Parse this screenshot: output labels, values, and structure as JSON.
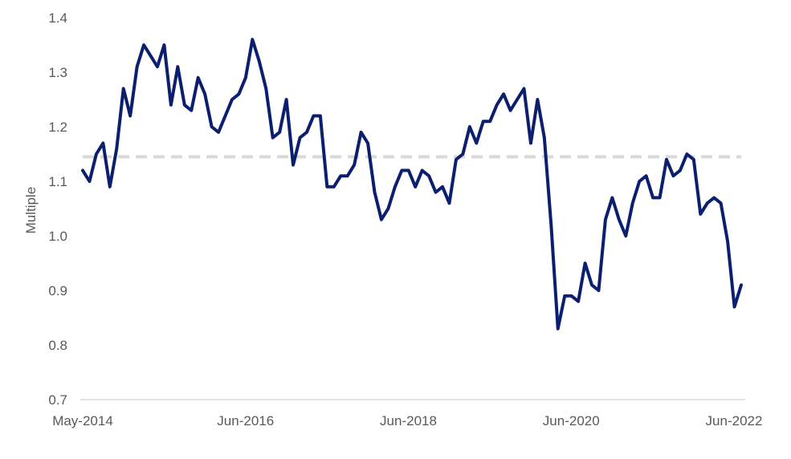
{
  "chart_data": {
    "type": "line",
    "title": "",
    "xlabel": "",
    "ylabel": "Multiple",
    "ylim": [
      0.7,
      1.4
    ],
    "yticks": [
      0.7,
      0.8,
      0.9,
      1.0,
      1.1,
      1.2,
      1.3,
      1.4
    ],
    "ytick_labels": [
      "0.7",
      "0.8",
      "0.9",
      "1.0",
      "1.1",
      "1.2",
      "1.3",
      "1.4"
    ],
    "xtick_labels": [
      "May-2014",
      "Jun-2016",
      "Jun-2018",
      "Jun-2020",
      "Jun-2022"
    ],
    "grid": false,
    "series": [
      {
        "color": "#0b1f6e",
        "x": [
          "2014-05",
          "2014-06",
          "2014-07",
          "2014-08",
          "2014-09",
          "2014-10",
          "2014-11",
          "2014-12",
          "2015-01",
          "2015-02",
          "2015-03",
          "2015-04",
          "2015-05",
          "2015-06",
          "2015-07",
          "2015-08",
          "2015-09",
          "2015-10",
          "2015-11",
          "2015-12",
          "2016-01",
          "2016-02",
          "2016-03",
          "2016-04",
          "2016-05",
          "2016-06",
          "2016-07",
          "2016-08",
          "2016-09",
          "2016-10",
          "2016-11",
          "2016-12",
          "2017-01",
          "2017-02",
          "2017-03",
          "2017-04",
          "2017-05",
          "2017-06",
          "2017-07",
          "2017-08",
          "2017-09",
          "2017-10",
          "2017-11",
          "2017-12",
          "2018-01",
          "2018-02",
          "2018-03",
          "2018-04",
          "2018-05",
          "2018-06",
          "2018-07",
          "2018-08",
          "2018-09",
          "2018-10",
          "2018-11",
          "2018-12",
          "2019-01",
          "2019-02",
          "2019-03",
          "2019-04",
          "2019-05",
          "2019-06",
          "2019-07",
          "2019-08",
          "2019-09",
          "2019-10",
          "2019-11",
          "2019-12",
          "2020-01",
          "2020-02",
          "2020-03",
          "2020-04",
          "2020-05",
          "2020-06",
          "2020-07",
          "2020-08",
          "2020-09",
          "2020-10",
          "2020-11",
          "2020-12",
          "2021-01",
          "2021-02",
          "2021-03",
          "2021-04",
          "2021-05",
          "2021-06",
          "2021-07",
          "2021-08",
          "2021-09",
          "2021-10",
          "2021-11",
          "2021-12",
          "2022-01",
          "2022-02",
          "2022-03",
          "2022-04",
          "2022-05",
          "2022-06"
        ],
        "values": [
          1.12,
          1.1,
          1.15,
          1.17,
          1.09,
          1.16,
          1.27,
          1.22,
          1.31,
          1.35,
          1.33,
          1.31,
          1.35,
          1.24,
          1.31,
          1.24,
          1.23,
          1.29,
          1.26,
          1.2,
          1.19,
          1.22,
          1.25,
          1.26,
          1.29,
          1.36,
          1.32,
          1.27,
          1.18,
          1.19,
          1.25,
          1.13,
          1.18,
          1.19,
          1.22,
          1.22,
          1.09,
          1.09,
          1.11,
          1.11,
          1.13,
          1.19,
          1.17,
          1.08,
          1.03,
          1.05,
          1.09,
          1.12,
          1.12,
          1.09,
          1.12,
          1.11,
          1.08,
          1.09,
          1.06,
          1.14,
          1.15,
          1.2,
          1.17,
          1.21,
          1.21,
          1.24,
          1.26,
          1.23,
          1.25,
          1.27,
          1.17,
          1.25,
          1.18,
          1.02,
          0.83,
          0.89,
          0.89,
          0.88,
          0.95,
          0.91,
          0.9,
          1.03,
          1.07,
          1.03,
          1.0,
          1.06,
          1.1,
          1.11,
          1.07,
          1.07,
          1.14,
          1.11,
          1.12,
          1.15,
          1.14,
          1.04,
          1.06,
          1.07,
          1.06,
          0.99,
          0.87,
          0.91
        ]
      }
    ],
    "reference_line": {
      "value": 1.145,
      "color": "#d9d9d9",
      "style": "dashed"
    },
    "axis_color": "#d9d9d9"
  }
}
